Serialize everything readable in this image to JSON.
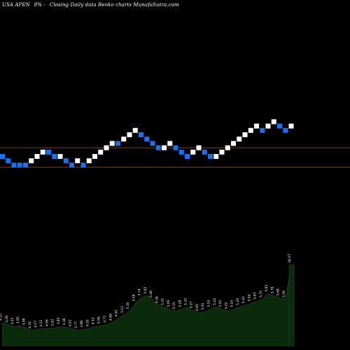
{
  "header": {
    "symbol": "USA APEN",
    "change": "8% -",
    "description": "Closing Daily data Renko charts MunafaSutra.com"
  },
  "colors": {
    "background": "#000000",
    "up_brick": "#ffffff",
    "down_brick": "#1e6fe8",
    "reference_line": "#8b3a2a",
    "volume_fill": "#0b2a0b",
    "volume_edge": "#2a4a2a"
  },
  "chart_data": [
    {
      "type": "renko",
      "direction_legend": {
        "up": "white",
        "down": "blue"
      },
      "reference_levels": [
        2,
        -2.5
      ],
      "bricks": [
        {
          "dir": "down",
          "level": 0
        },
        {
          "dir": "down",
          "level": -1
        },
        {
          "dir": "down",
          "level": -2
        },
        {
          "dir": "down",
          "level": -2
        },
        {
          "dir": "down",
          "level": -2
        },
        {
          "dir": "up",
          "level": -1
        },
        {
          "dir": "up",
          "level": 0
        },
        {
          "dir": "up",
          "level": 1
        },
        {
          "dir": "down",
          "level": 1
        },
        {
          "dir": "down",
          "level": 0
        },
        {
          "dir": "up",
          "level": 0
        },
        {
          "dir": "down",
          "level": -1
        },
        {
          "dir": "down",
          "level": -2
        },
        {
          "dir": "up",
          "level": -1
        },
        {
          "dir": "down",
          "level": -2
        },
        {
          "dir": "up",
          "level": -1
        },
        {
          "dir": "up",
          "level": 0
        },
        {
          "dir": "up",
          "level": 1
        },
        {
          "dir": "up",
          "level": 2
        },
        {
          "dir": "up",
          "level": 3
        },
        {
          "dir": "down",
          "level": 3
        },
        {
          "dir": "up",
          "level": 4
        },
        {
          "dir": "up",
          "level": 5
        },
        {
          "dir": "up",
          "level": 6
        },
        {
          "dir": "down",
          "level": 5
        },
        {
          "dir": "down",
          "level": 4
        },
        {
          "dir": "down",
          "level": 3
        },
        {
          "dir": "down",
          "level": 2
        },
        {
          "dir": "up",
          "level": 2
        },
        {
          "dir": "up",
          "level": 3
        },
        {
          "dir": "down",
          "level": 2
        },
        {
          "dir": "down",
          "level": 1
        },
        {
          "dir": "down",
          "level": 0
        },
        {
          "dir": "up",
          "level": 1
        },
        {
          "dir": "up",
          "level": 2
        },
        {
          "dir": "down",
          "level": 1
        },
        {
          "dir": "down",
          "level": 0
        },
        {
          "dir": "up",
          "level": 0
        },
        {
          "dir": "up",
          "level": 1
        },
        {
          "dir": "up",
          "level": 2
        },
        {
          "dir": "up",
          "level": 3
        },
        {
          "dir": "up",
          "level": 4
        },
        {
          "dir": "up",
          "level": 5
        },
        {
          "dir": "up",
          "level": 6
        },
        {
          "dir": "up",
          "level": 7
        },
        {
          "dir": "down",
          "level": 6
        },
        {
          "dir": "up",
          "level": 7
        },
        {
          "dir": "up",
          "level": 8
        },
        {
          "dir": "down",
          "level": 7
        },
        {
          "dir": "down",
          "level": 6
        },
        {
          "dir": "up",
          "level": 7
        }
      ]
    },
    {
      "type": "area",
      "series": [
        {
          "values": [
            0.6,
            0.55,
            0.5,
            0.52,
            0.48,
            0.4,
            0.42,
            0.44,
            0.45,
            0.46,
            0.5,
            0.48,
            0.44,
            0.4,
            0.42,
            0.45,
            0.5,
            0.52,
            0.55,
            0.6,
            0.7,
            0.8,
            0.9,
            1.1,
            1.25,
            1.3,
            1.2,
            1.05,
            1.0,
            0.95,
            0.9,
            0.95,
            1.0,
            0.92,
            0.85,
            0.88,
            0.95,
            1.0,
            0.95,
            0.9,
            0.95,
            1.0,
            1.05,
            1.1,
            1.15,
            1.2,
            1.35,
            1.3,
            1.25,
            1.2,
            2.1
          ],
          "labels": [
            "4.10",
            "4.26",
            "4.01",
            "3.95",
            "3.98",
            "4.21",
            "4.27",
            "4.11",
            "4.06",
            "3.92",
            "3.85",
            "4.18",
            "4.02",
            "3.77",
            "3.88",
            "4.05",
            "4.33",
            "4.56",
            "4.72",
            "4.68",
            "4.90",
            "5.12",
            "5.30",
            "5.58",
            "5.74",
            "5.62",
            "5.48",
            "5.36",
            "5.21",
            "5.09",
            "5.15",
            "5.28",
            "5.33",
            "5.07",
            "4.95",
            "5.01",
            "5.19",
            "5.24",
            "5.10",
            "5.02",
            "5.14",
            "5.29",
            "5.41",
            "5.55",
            "5.63",
            "5.70",
            "5.82",
            "5.76",
            "5.68",
            "5.59",
            "16.07"
          ]
        }
      ]
    }
  ]
}
